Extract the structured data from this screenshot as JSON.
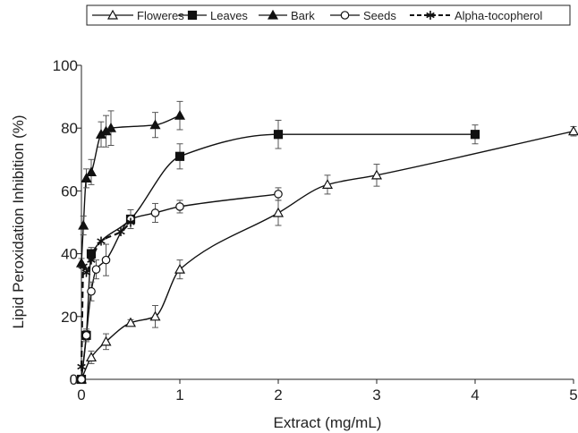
{
  "chart_data": {
    "type": "line",
    "title": "",
    "xlabel": "Extract (mg/mL)",
    "ylabel": "Lipid Peroxidation Inhibition (%)",
    "xlim": [
      0,
      5
    ],
    "ylim": [
      0,
      100
    ],
    "x_ticks": [
      0,
      1,
      2,
      3,
      4,
      5
    ],
    "y_ticks": [
      0,
      20,
      40,
      60,
      80,
      100
    ],
    "grid": false,
    "legend_position": "top",
    "series": [
      {
        "name": "Floweres",
        "marker": "open-triangle",
        "line": "solid",
        "x": [
          0.0,
          0.1,
          0.25,
          0.5,
          0.75,
          1.0,
          2.0,
          2.5,
          3.0,
          5.0
        ],
        "y": [
          0,
          7,
          12,
          18,
          20,
          35,
          53,
          62,
          65,
          79
        ],
        "err": [
          1,
          2,
          2.5,
          1,
          3.5,
          3,
          4,
          3,
          3.5,
          1.5
        ]
      },
      {
        "name": "Leaves",
        "marker": "filled-square",
        "line": "solid",
        "x": [
          0.0,
          0.05,
          0.1,
          0.5,
          1.0,
          2.0,
          4.0
        ],
        "y": [
          0,
          14,
          40,
          51,
          71,
          78,
          78
        ],
        "err": [
          0.5,
          1.5,
          2,
          3,
          4,
          4.5,
          3
        ]
      },
      {
        "name": "Bark",
        "marker": "filled-triangle",
        "line": "solid",
        "x": [
          0.0,
          0.02,
          0.05,
          0.1,
          0.2,
          0.25,
          0.3,
          0.75,
          1.0
        ],
        "y": [
          37,
          49,
          64,
          66,
          78,
          79,
          80,
          81,
          84
        ],
        "err": [
          1.5,
          3,
          3,
          4,
          4,
          5,
          5.5,
          4,
          4.5
        ]
      },
      {
        "name": "Seeds",
        "marker": "open-circle",
        "line": "solid",
        "x": [
          0.0,
          0.05,
          0.1,
          0.15,
          0.25,
          0.5,
          0.75,
          1.0,
          2.0
        ],
        "y": [
          0,
          14,
          28,
          35,
          38,
          51,
          53,
          55,
          59
        ],
        "err": [
          0.5,
          2,
          3,
          3,
          5,
          3,
          3,
          2,
          2
        ]
      },
      {
        "name": "Alpha-tocopherol",
        "marker": "asterisk",
        "line": "dashed",
        "x": [
          0.0,
          0.02,
          0.05,
          0.1,
          0.2,
          0.4,
          0.5
        ],
        "y": [
          4,
          36,
          34,
          38,
          44,
          47,
          50
        ],
        "err": [
          0,
          0,
          0,
          0,
          0,
          0,
          0
        ]
      }
    ]
  }
}
